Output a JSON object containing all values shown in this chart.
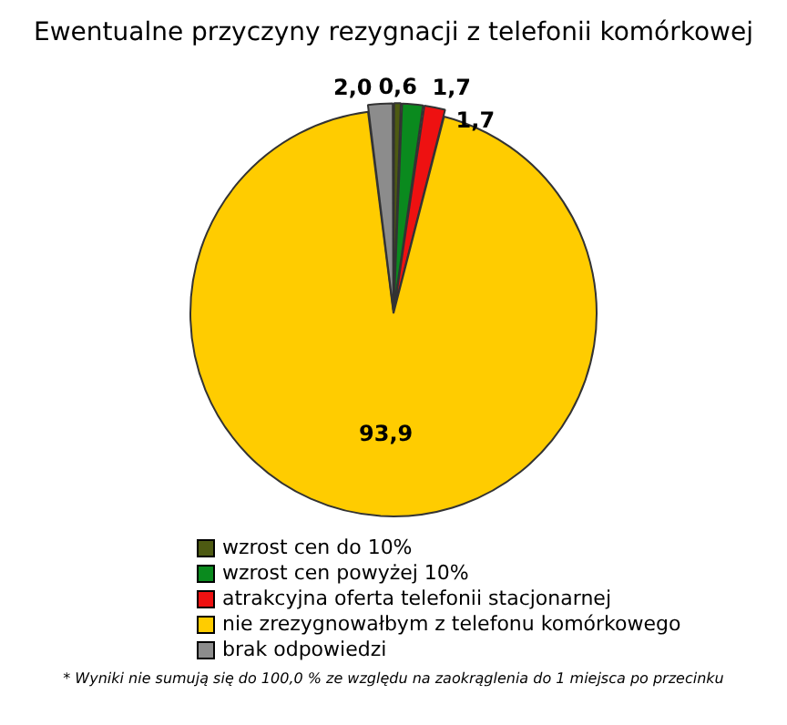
{
  "chart_data": {
    "type": "pie",
    "title": "Ewentualne przyczyny rezygnacji z telefonii komórkowej",
    "categories": [
      "wzrost cen do 10%",
      "wzrost cen powyżej 10%",
      "atrakcyjna oferta telefonii stacjonarnej",
      "nie zrezygnowałbym z telefonu komórkowego",
      "brak odpowiedzi"
    ],
    "values": [
      0.6,
      1.7,
      1.7,
      93.9,
      2.0
    ],
    "colors": [
      "#4d5a12",
      "#0a8a1e",
      "#ee1111",
      "#ffcc00",
      "#8c8c8c"
    ],
    "value_labels": [
      "0,6",
      "1,7",
      "1,7",
      "93,9",
      "2,0"
    ],
    "legend": "bottom",
    "annotations": [
      "* Wyniki nie sumują się do 100,0 % ze względu na zaokrąglenia do 1 miejsca po przecinku"
    ]
  }
}
